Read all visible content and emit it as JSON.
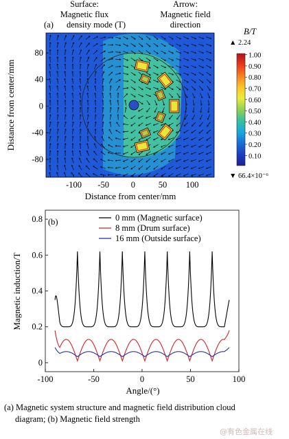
{
  "chart_data": [
    {
      "type": "heatmap",
      "panel": "(a)",
      "header_left": [
        "Surface:",
        "Magnetic flux",
        "density mode (T)"
      ],
      "header_right": [
        "Arrow:",
        "Magnetic field",
        "direction"
      ],
      "xlabel": "Distance from center/mm",
      "ylabel": "Distance from center/mm",
      "xticks": [
        -100,
        -50,
        0,
        50,
        100
      ],
      "yticks": [
        80,
        40,
        0,
        -40,
        -80
      ],
      "xlim": [
        -147,
        137
      ],
      "ylim": [
        -107,
        110
      ],
      "colorbar": {
        "title": "B/T",
        "max_label": "▲ 2.24",
        "min_label": "▼ 66.4×10⁻⁶",
        "ticks": [
          "1.00",
          "0.90",
          "0.80",
          "0.70",
          "0.60",
          "0.50",
          "0.40",
          "0.30",
          "0.20",
          "0.10"
        ],
        "colors": [
          "#b5121b",
          "#e83a1f",
          "#f6821f",
          "#fcc52a",
          "#e8ec3a",
          "#8fd152",
          "#35c0a0",
          "#18a8de",
          "#1670d6",
          "#1f3cc0",
          "#1a1f9a"
        ],
        "background_color": "#1f58d8"
      }
    },
    {
      "type": "line",
      "panel": "(b)",
      "xlabel": "Angle/(°)",
      "ylabel": "Magnetic induction/T",
      "xticks": [
        -100,
        -50,
        0,
        50,
        100
      ],
      "yticks": [
        "0",
        "0.2",
        "0.4",
        "0.6",
        "0.8"
      ],
      "xlim": [
        -100,
        100
      ],
      "ylim": [
        -0.05,
        0.85
      ],
      "legend_position": "top-right",
      "series": [
        {
          "name": "0 mm (Magnetic surface)",
          "color": "#000000",
          "pole_width": 23.2,
          "peak": 0.62,
          "trough": 0.2,
          "end": 0.35,
          "peak_sharpness": 5.0,
          "x": [
            -90,
            90
          ]
        },
        {
          "name": "8 mm (Drum surface)",
          "color": "#d42020",
          "pole_width": 23.2,
          "peak": 0.13,
          "trough": 0.01,
          "end": 0.18,
          "x": [
            -90,
            90
          ]
        },
        {
          "name": "16 mm (Outside surface)",
          "color": "#1f2fa8",
          "pole_width": 23.2,
          "peak": 0.062,
          "trough": 0.034,
          "end": 0.085,
          "x": [
            -90,
            90
          ]
        }
      ]
    }
  ],
  "caption": {
    "line1": "(a)  Magnetic system structure and magnetic field distribution cloud",
    "line2": "diagram; (b) Magnetic field strength"
  },
  "watermark": "@有色金属在线"
}
